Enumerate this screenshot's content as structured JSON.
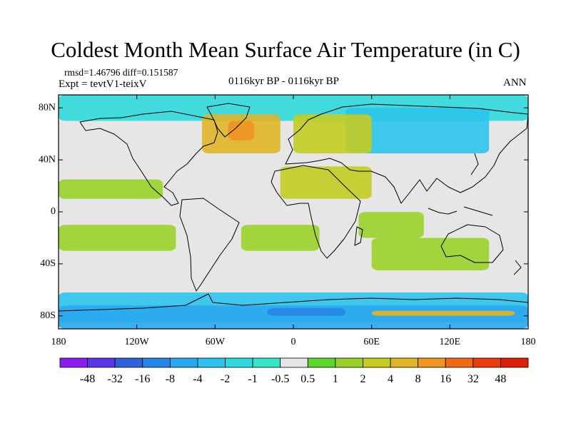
{
  "title": "Coldest Month Mean Surface Air Temperature (in C)",
  "stats": {
    "rmsd_label": "rmsd=",
    "rmsd": "1.46796",
    "diff_label": "diff=",
    "diff": "0.151587"
  },
  "experiment": "Expt = tevtV1-teixV",
  "period": "0116kyr BP - 0116kyr BP",
  "season": "ANN",
  "axes": {
    "lat_labels": [
      "80N",
      "40N",
      "0",
      "40S",
      "80S"
    ],
    "lon_labels": [
      "180",
      "120W",
      "60W",
      "0",
      "60E",
      "120E",
      "180"
    ]
  },
  "colorbar": {
    "labels": [
      "-48",
      "-32",
      "-16",
      "-8",
      "-4",
      "-2",
      "-1",
      "-0.5",
      "0.5",
      "1",
      "2",
      "4",
      "8",
      "16",
      "32",
      "48"
    ],
    "colors": [
      "#8c1cf0",
      "#5a36e4",
      "#2f62d8",
      "#2585e6",
      "#2aa8ee",
      "#2cc4ec",
      "#2fd8dc",
      "#36e6c8",
      "#e6e6e6",
      "#5cd62a",
      "#9ad22a",
      "#c4cc22",
      "#e0b428",
      "#f09422",
      "#f06a14",
      "#e83c0a",
      "#d8200a"
    ]
  },
  "chart_data": {
    "type": "heatmap",
    "title": "Coldest Month Mean Surface Air Temperature (in C)",
    "projection": "cylindrical equidistant",
    "lon_range": [
      -180,
      180
    ],
    "lat_range": [
      -90,
      90
    ],
    "lon_ticks": [
      "180",
      "120W",
      "60W",
      "0",
      "60E",
      "120E",
      "180"
    ],
    "lat_ticks": [
      "80N",
      "40N",
      "0",
      "40S",
      "80S"
    ],
    "contour_levels": [
      -48,
      -32,
      -16,
      -8,
      -4,
      -2,
      -1,
      -0.5,
      0.5,
      1,
      2,
      4,
      8,
      16,
      32,
      48
    ],
    "regions": [
      {
        "name": "southern-ocean-band",
        "lon": [
          -180,
          180
        ],
        "lat": [
          -85,
          -62
        ],
        "level": "-2"
      },
      {
        "name": "antarctic-coast-cold-band",
        "lon": [
          -180,
          180
        ],
        "lat": [
          -90,
          -72
        ],
        "level": "-4"
      },
      {
        "name": "antarctic-weddell-cold",
        "lon": [
          -20,
          40
        ],
        "lat": [
          -80,
          -74
        ],
        "level": "-8"
      },
      {
        "name": "east-antarctic-warm",
        "lon": [
          60,
          170
        ],
        "lat": [
          -80,
          -76
        ],
        "level": "4"
      },
      {
        "name": "arctic-cold-sea",
        "lon": [
          -180,
          180
        ],
        "lat": [
          70,
          90
        ],
        "level": "-1"
      },
      {
        "name": "north-atlantic-warm",
        "lon": [
          -70,
          -10
        ],
        "lat": [
          45,
          75
        ],
        "level": "4"
      },
      {
        "name": "north-atlantic-core",
        "lon": [
          -50,
          -30
        ],
        "lat": [
          55,
          70
        ],
        "level": "8"
      },
      {
        "name": "siberia-cold",
        "lon": [
          40,
          150
        ],
        "lat": [
          45,
          80
        ],
        "level": "-2"
      },
      {
        "name": "eurasia-warm-patch",
        "lon": [
          0,
          60
        ],
        "lat": [
          45,
          75
        ],
        "level": "2"
      },
      {
        "name": "sahara-arabia-warm",
        "lon": [
          -10,
          60
        ],
        "lat": [
          10,
          35
        ],
        "level": "2"
      },
      {
        "name": "north-pacific-band",
        "lon": [
          -180,
          -100
        ],
        "lat": [
          10,
          25
        ],
        "level": "1"
      },
      {
        "name": "tropical-indian-ocean",
        "lon": [
          50,
          100
        ],
        "lat": [
          -20,
          0
        ],
        "level": "1"
      },
      {
        "name": "south-indian-australia",
        "lon": [
          60,
          150
        ],
        "lat": [
          -45,
          -20
        ],
        "level": "1"
      },
      {
        "name": "south-pacific-band",
        "lon": [
          -180,
          -90
        ],
        "lat": [
          -30,
          -10
        ],
        "level": "1"
      },
      {
        "name": "south-atlantic-band",
        "lon": [
          -40,
          20
        ],
        "lat": [
          -30,
          -10
        ],
        "level": "1"
      }
    ]
  }
}
